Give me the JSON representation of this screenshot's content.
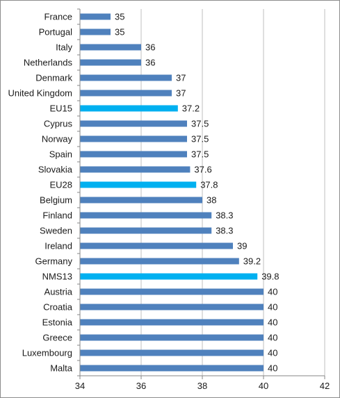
{
  "chart_data": {
    "type": "bar",
    "orientation": "horizontal",
    "categories": [
      "France",
      "Portugal",
      "Italy",
      "Netherlands",
      "Denmark",
      "United Kingdom",
      "EU15",
      "Cyprus",
      "Norway",
      "Spain",
      "Slovakia",
      "EU28",
      "Belgium",
      "Finland",
      "Sweden",
      "Ireland",
      "Germany",
      "NMS13",
      "Austria",
      "Croatia",
      "Estonia",
      "Greece",
      "Luxembourg",
      "Malta"
    ],
    "values": [
      35,
      35,
      36,
      36,
      37,
      37,
      37.2,
      37.5,
      37.5,
      37.5,
      37.6,
      37.8,
      38,
      38.3,
      38.3,
      39,
      39.2,
      39.8,
      40,
      40,
      40,
      40,
      40,
      40
    ],
    "value_labels": [
      "35",
      "35",
      "36",
      "36",
      "37",
      "37",
      "37.2",
      "37.5",
      "37.5",
      "37.5",
      "37.6",
      "37.8",
      "38",
      "38.3",
      "38.3",
      "39",
      "39.2",
      "39.8",
      "40",
      "40",
      "40",
      "40",
      "40",
      "40"
    ],
    "highlighted": [
      "EU15",
      "EU28",
      "NMS13"
    ],
    "xlim": [
      34,
      42
    ],
    "xticks": [
      "34",
      "36",
      "38",
      "40",
      "42"
    ],
    "grid": "vertical",
    "title": "",
    "xlabel": "",
    "ylabel": "",
    "colors": {
      "bar": "#4f81bd",
      "highlight": "#00b0f0",
      "grid": "#bfbfbf",
      "axis": "#868686"
    }
  }
}
